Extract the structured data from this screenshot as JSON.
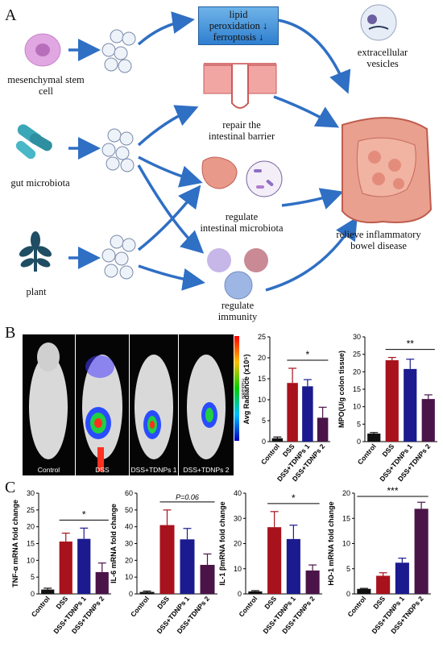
{
  "panelA": {
    "letter": "A",
    "sources": [
      "mesenchymal stem cell",
      "gut microbiota",
      "plant"
    ],
    "mechanisms": {
      "ferroptosis_box": [
        "lipid",
        "peroxidation ↓",
        "ferroptosis ↓"
      ],
      "barrier": [
        "repair the",
        "intestinal barrier"
      ],
      "microbiota": [
        "regulate",
        "intestinal microbiota"
      ],
      "immunity": [
        "regulate",
        "immunity"
      ]
    },
    "ev_label": [
      "extracellular",
      "vesicles"
    ],
    "outcome": [
      "relieve inflammatory",
      "bowel disease"
    ],
    "colors": {
      "arrow": "#2f6fc4",
      "box": "#3a8bd8",
      "msc": "#d79ad8",
      "bacteria": "#3aa7b8",
      "plant": "#1f4d63",
      "intestine": "#e9998a"
    }
  },
  "panelB": {
    "letter": "B",
    "images": [
      "Control",
      "DSS",
      "DSS+TDNPs 1",
      "DSS+TDNPs 2"
    ],
    "colorbar_label": "Radiance"
  },
  "panelC": {
    "letter": "C"
  },
  "chart_data": [
    {
      "type": "bar",
      "ylabel": "Avg Radiance (x10⁵)",
      "categories": [
        "Control",
        "DSS",
        "DSS+TDNPs 1",
        "DSS+TDNPs 2"
      ],
      "values": [
        0.8,
        14,
        13.2,
        5.7
      ],
      "errors": [
        0.3,
        3.5,
        1.6,
        2.5
      ],
      "ylim": [
        0,
        25
      ],
      "yticks": [
        0,
        5,
        10,
        15,
        20,
        25
      ],
      "sig": {
        "text": "*",
        "from": 1,
        "to": 3
      }
    },
    {
      "type": "bar",
      "ylabel": "MPO(U/g colon tissue)",
      "categories": [
        "Control",
        "DSS",
        "DSS+TDNPs 1",
        "DSS+TDNPs 2"
      ],
      "values": [
        2.3,
        23.3,
        20.8,
        12.2
      ],
      "errors": [
        0.3,
        0.8,
        2.8,
        1.2
      ],
      "ylim": [
        0,
        30
      ],
      "yticks": [
        0,
        5,
        10,
        15,
        20,
        25,
        30
      ],
      "sig": {
        "text": "**",
        "from": 1,
        "to": 3
      }
    },
    {
      "type": "bar",
      "ylabel": "TNF-α mRNA fold change",
      "categories": [
        "Control",
        "DSS",
        "DSS+TDNPs 1",
        "DSS+TDNPs 2"
      ],
      "values": [
        1.3,
        15.6,
        16.4,
        6.5
      ],
      "errors": [
        0.4,
        2.5,
        3.2,
        2.7
      ],
      "ylim": [
        0,
        30
      ],
      "yticks": [
        0,
        5,
        10,
        15,
        20,
        25,
        30
      ],
      "sig": {
        "text": "*",
        "from": 1,
        "to": 3
      }
    },
    {
      "type": "bar",
      "ylabel": "IL-6 mRNA fold change",
      "categories": [
        "Control",
        "DSS",
        "DSS+TDNPs 1",
        "DSS+TDNPs 2"
      ],
      "values": [
        1.2,
        41,
        32.5,
        17.3
      ],
      "errors": [
        0.5,
        9,
        6.5,
        6.5
      ],
      "ylim": [
        0,
        60
      ],
      "yticks": [
        0,
        10,
        20,
        30,
        40,
        50,
        60
      ],
      "sig": {
        "text": "P=0.06",
        "from": 1,
        "to": 3
      }
    },
    {
      "type": "bar",
      "ylabel": "IL-1 βmRNA fold change",
      "categories": [
        "Control",
        "DSS",
        "DSS+TDNPs 1",
        "DSS+TDNPs 2"
      ],
      "values": [
        1,
        26.5,
        21.8,
        9.3
      ],
      "errors": [
        0.3,
        6.2,
        5.5,
        2.2
      ],
      "ylim": [
        0,
        40
      ],
      "yticks": [
        0,
        10,
        20,
        30,
        40
      ],
      "sig": {
        "text": "*",
        "from": 1,
        "to": 3
      }
    },
    {
      "type": "bar",
      "ylabel": "HO-1 mRNA fold change",
      "categories": [
        "Control",
        "DSS",
        "DSS+TDNPs 1",
        "DSS+TNDPs 2"
      ],
      "values": [
        1,
        3.6,
        6.2,
        16.9
      ],
      "errors": [
        0.1,
        0.6,
        0.9,
        1.3
      ],
      "ylim": [
        0,
        20
      ],
      "yticks": [
        0,
        5,
        10,
        15,
        20
      ],
      "sig": {
        "text": "***",
        "from": 0,
        "to": 3
      }
    }
  ],
  "bar_colors": [
    "#111111",
    "#a8121c",
    "#1b1b8f",
    "#4a1448"
  ]
}
